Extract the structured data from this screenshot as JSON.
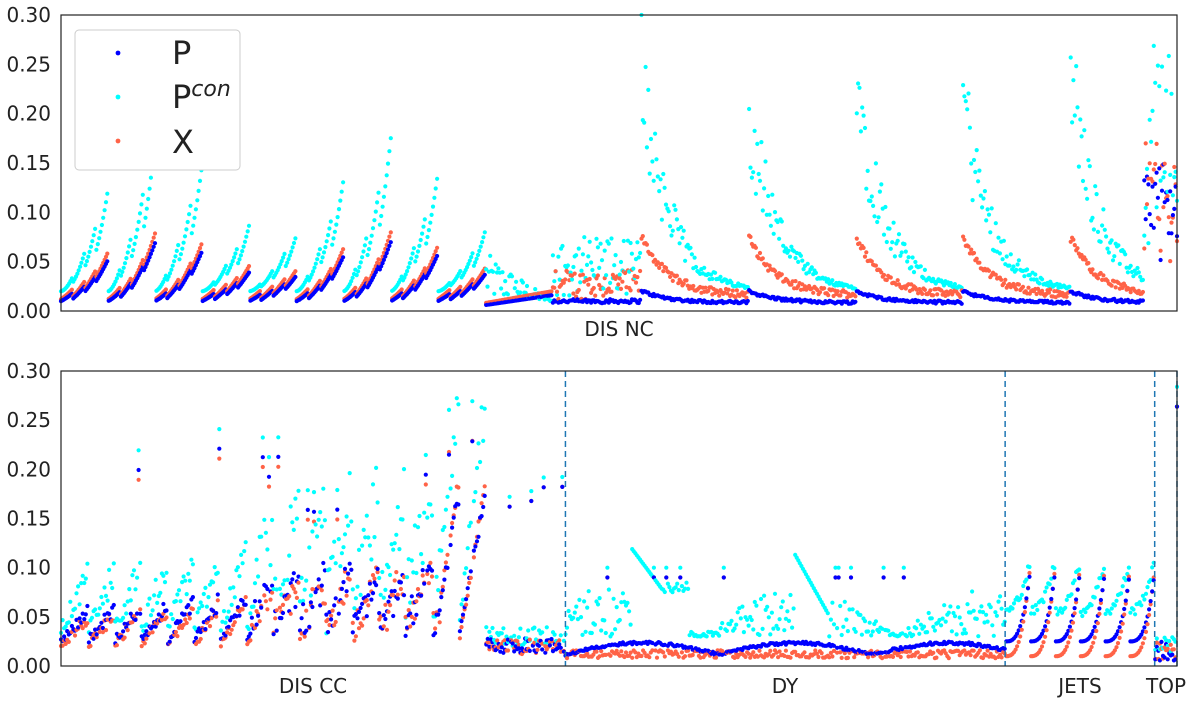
{
  "chart_data": [
    {
      "type": "scatter",
      "panel": "top",
      "title": "",
      "xlabel": "DIS NC",
      "ylabel": "",
      "ylim": [
        0,
        0.3
      ],
      "yticks": [
        "0.00",
        "0.05",
        "0.10",
        "0.15",
        "0.20",
        "0.25",
        "0.30"
      ],
      "grid": false,
      "legend": {
        "location": "top-left",
        "entries": [
          {
            "label": "P",
            "color": "#0000ff"
          },
          {
            "label": "P",
            "sup": "con",
            "color": "#00ffff"
          },
          {
            "label": "X",
            "color": "#ff6347"
          }
        ]
      },
      "x_categories": [
        {
          "label": "DIS NC",
          "start": 0,
          "end": 1
        }
      ],
      "point_count_per_series": 820,
      "series": [
        {
          "name": "P",
          "color": "#0000ff",
          "baseline_range": [
            0.005,
            0.06
          ],
          "peak": 0.16
        },
        {
          "name": "Pcon",
          "color": "#00ffff",
          "baseline_range": [
            0.02,
            0.15
          ],
          "peak": 0.3
        },
        {
          "name": "X",
          "color": "#ff6347",
          "baseline_range": [
            0.01,
            0.08
          ],
          "peak": 0.18
        }
      ]
    },
    {
      "type": "scatter",
      "panel": "bottom",
      "title": "",
      "xlabel": "",
      "ylabel": "",
      "ylim": [
        0,
        0.3
      ],
      "yticks": [
        "0.00",
        "0.05",
        "0.10",
        "0.15",
        "0.20",
        "0.25",
        "0.30"
      ],
      "grid": false,
      "x_categories": [
        {
          "label": "DIS CC",
          "start": 0.0,
          "end": 0.452
        },
        {
          "label": "DY",
          "start": 0.452,
          "end": 0.846
        },
        {
          "label": "JETS",
          "start": 0.846,
          "end": 0.98
        },
        {
          "label": "TOP",
          "start": 0.98,
          "end": 1.0
        }
      ],
      "separators_at": [
        0.452,
        0.846,
        0.98,
        1.0
      ],
      "point_count_per_series": 720,
      "series": [
        {
          "name": "P",
          "color": "#0000ff",
          "baseline_range": [
            0.01,
            0.07
          ],
          "peak": 0.27
        },
        {
          "name": "Pcon",
          "color": "#00ffff",
          "baseline_range": [
            0.02,
            0.12
          ],
          "peak": 0.3
        },
        {
          "name": "X",
          "color": "#ff6347",
          "baseline_range": [
            0.005,
            0.08
          ],
          "peak": 0.3
        }
      ]
    }
  ]
}
